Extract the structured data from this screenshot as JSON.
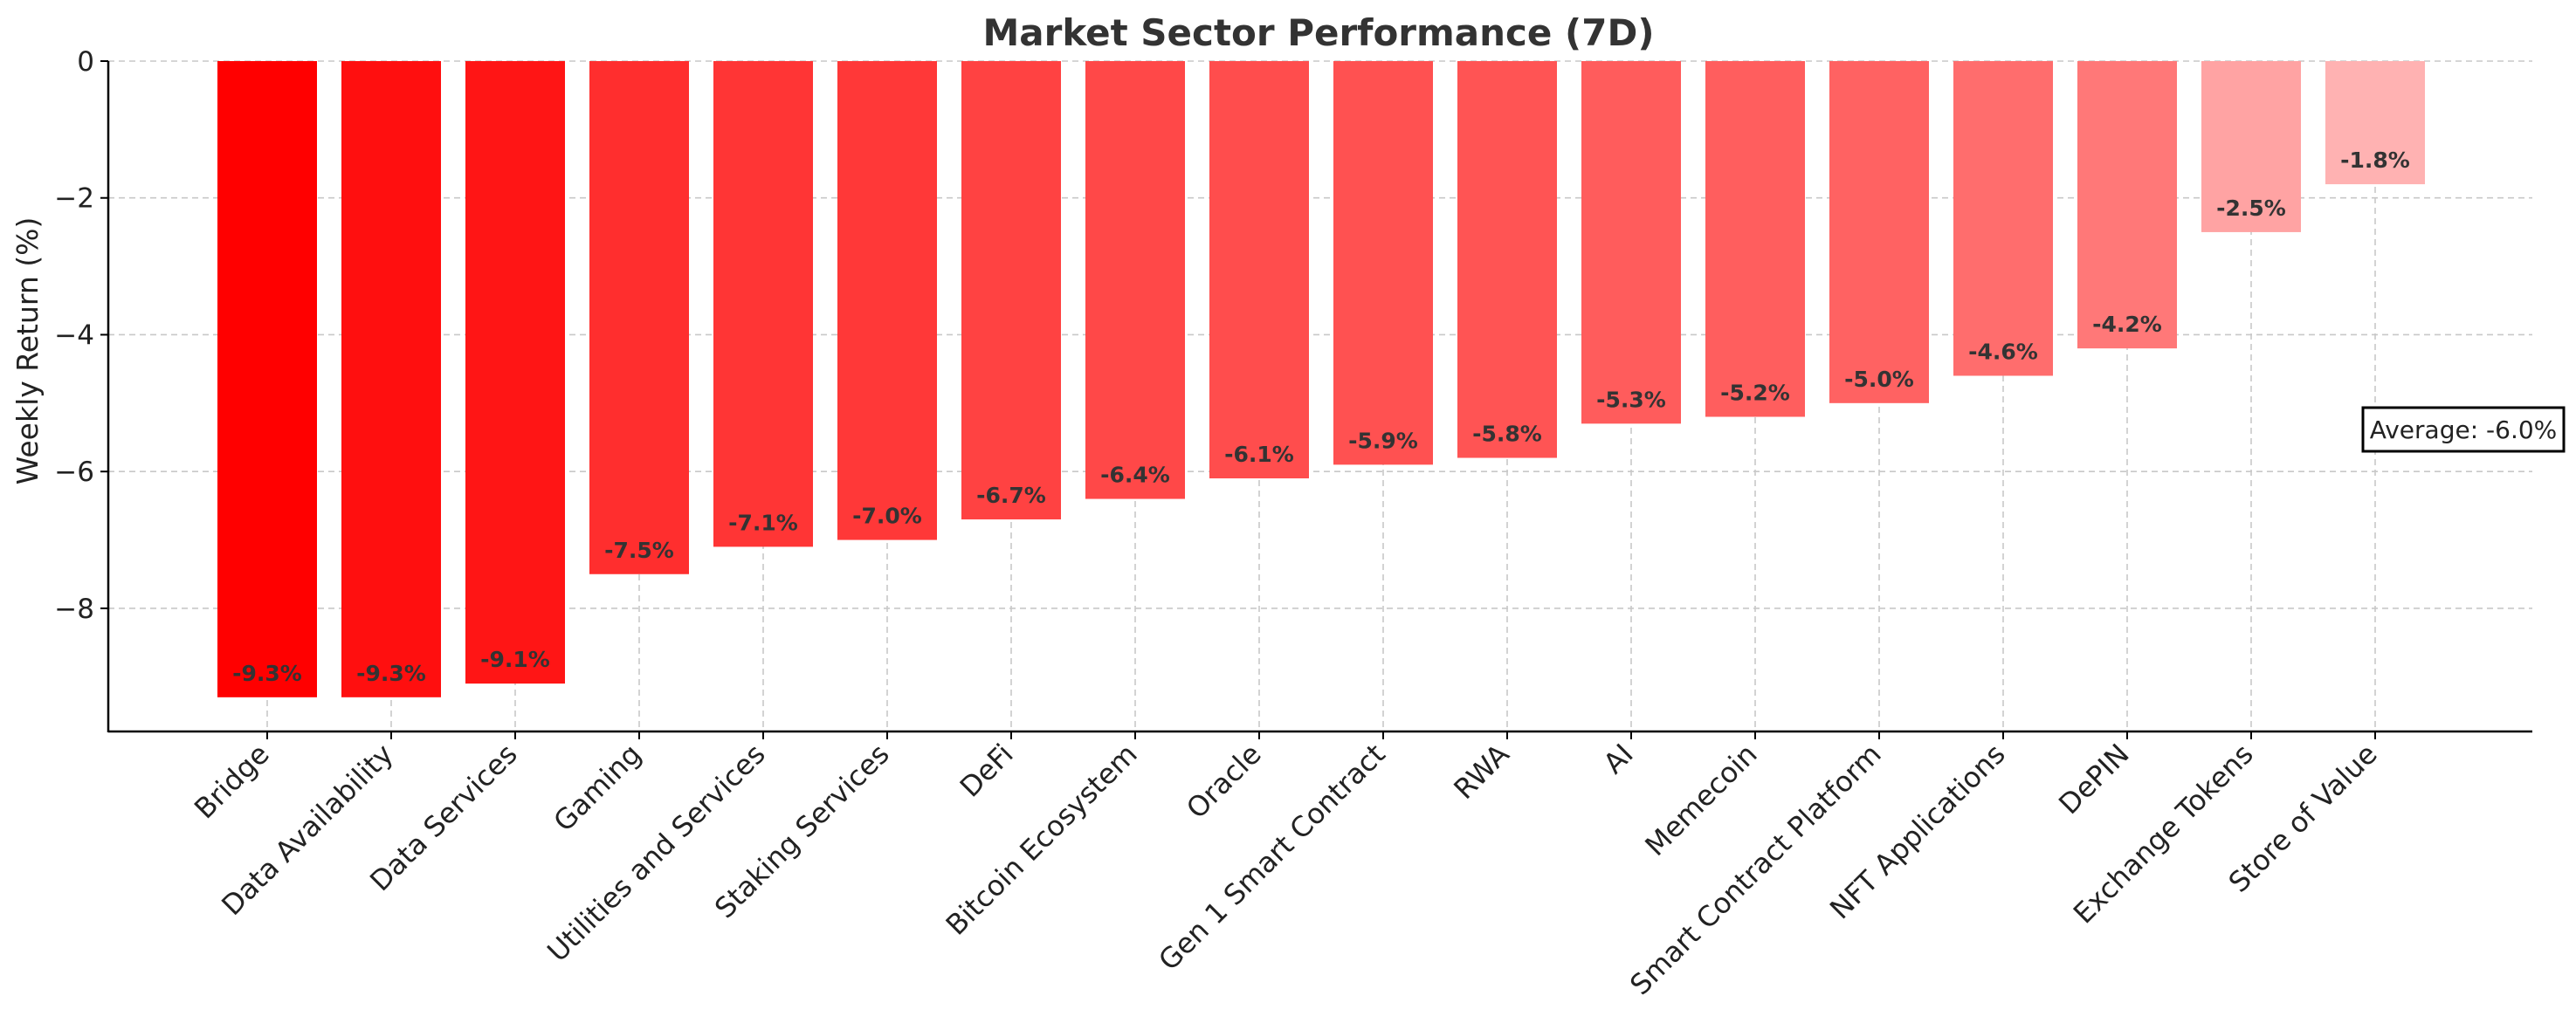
{
  "chart_data": {
    "type": "bar",
    "title": "Market Sector Performance (7D)",
    "xlabel": "",
    "ylabel": "Weekly Return (%)",
    "ylim": [
      -9.8,
      0
    ],
    "yticks": [
      0,
      -2,
      -4,
      -6,
      -8
    ],
    "ytick_labels": [
      "0",
      "−2",
      "−4",
      "−6",
      "−8"
    ],
    "grid": true,
    "categories": [
      "Bridge",
      "Data Availability",
      "Data Services",
      "Gaming",
      "Utilities and Services",
      "Staking Services",
      "DeFi",
      "Bitcoin Ecosystem",
      "Oracle",
      "Gen 1 Smart Contract",
      "RWA",
      "AI",
      "Memecoin",
      "Smart Contract Platform",
      "NFT Applications",
      "DePIN",
      "Exchange Tokens",
      "Store of Value"
    ],
    "values": [
      -9.3,
      -9.3,
      -9.1,
      -7.5,
      -7.1,
      -7.0,
      -6.7,
      -6.4,
      -6.1,
      -5.9,
      -5.8,
      -5.3,
      -5.2,
      -5.0,
      -4.6,
      -4.2,
      -2.5,
      -1.8
    ],
    "data_labels": [
      "-9.3%",
      "-9.3%",
      "-9.1%",
      "-7.5%",
      "-7.1%",
      "-7.0%",
      "-6.7%",
      "-6.4%",
      "-6.1%",
      "-5.9%",
      "-5.8%",
      "-5.3%",
      "-5.2%",
      "-5.0%",
      "-4.6%",
      "-4.2%",
      "-2.5%",
      "-1.8%"
    ],
    "colors": [
      "#ff0000",
      "#ff0f0f",
      "#ff1515",
      "#ff2e2e",
      "#ff3535",
      "#ff3838",
      "#ff4242",
      "#ff4848",
      "#ff4d4d",
      "#ff5151",
      "#ff5454",
      "#ff5c5c",
      "#ff5e5e",
      "#ff6262",
      "#ff6d6d",
      "#ff7878",
      "#ffa3a3",
      "#ffb2b2"
    ],
    "annotation": "Average: -6.0%"
  }
}
